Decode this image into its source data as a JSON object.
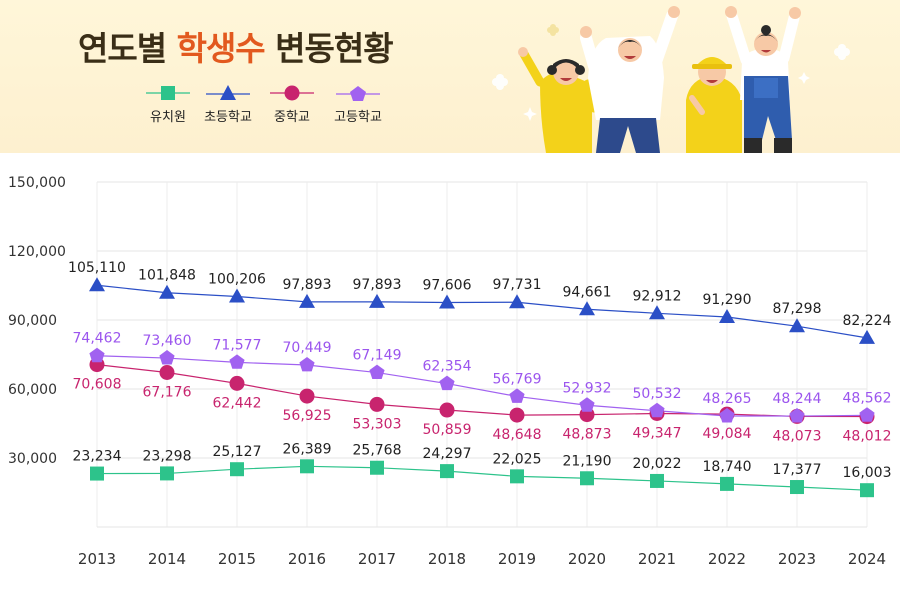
{
  "title": {
    "prefix": "연도별 ",
    "accent": "학생수",
    "suffix": " 변동현황"
  },
  "legend": [
    {
      "label": "유치원",
      "color": "#2dc38b",
      "marker": "square-icon"
    },
    {
      "label": "초등학교",
      "color": "#2b4fc6",
      "marker": "triangle-icon"
    },
    {
      "label": "중학교",
      "color": "#c8246e",
      "marker": "circle-icon"
    },
    {
      "label": "고등학교",
      "color": "#a162f0",
      "marker": "pentagon-icon"
    }
  ],
  "chart_data": {
    "type": "line",
    "x": [
      "2013",
      "2014",
      "2015",
      "2016",
      "2017",
      "2018",
      "2019",
      "2020",
      "2021",
      "2022",
      "2023",
      "2024"
    ],
    "ylim": [
      0,
      150000
    ],
    "yticks": [
      "30,000",
      "60,000",
      "90,000",
      "120,000",
      "150,000"
    ],
    "ytick_values": [
      30000,
      60000,
      90000,
      120000,
      150000
    ],
    "grid": true,
    "legend_position": "top",
    "series": [
      {
        "name": "유치원",
        "color": "#2dc38b",
        "label_color": "#222222",
        "marker": "square",
        "values": [
          23234,
          23298,
          25127,
          26389,
          25768,
          24297,
          22025,
          21190,
          20022,
          18740,
          17377,
          16003
        ],
        "labels": [
          "23,234",
          "23,298",
          "25,127",
          "26,389",
          "25,768",
          "24,297",
          "22,025",
          "21,190",
          "20,022",
          "18,740",
          "17,377",
          "16,003"
        ]
      },
      {
        "name": "초등학교",
        "color": "#2b4fc6",
        "label_color": "#222222",
        "marker": "triangle",
        "values": [
          105110,
          101848,
          100206,
          97893,
          97893,
          97606,
          97731,
          94661,
          92912,
          91290,
          87298,
          82224
        ],
        "labels": [
          "105,110",
          "101,848",
          "100,206",
          "97,893",
          "97,893",
          "97,606",
          "97,731",
          "94,661",
          "92,912",
          "91,290",
          "87,298",
          "82,224"
        ]
      },
      {
        "name": "중학교",
        "color": "#c8246e",
        "label_color": "#c8246e",
        "marker": "circle",
        "values": [
          70608,
          67176,
          62442,
          56925,
          53303,
          50859,
          48648,
          48873,
          49347,
          49084,
          48073,
          48012
        ],
        "labels": [
          "70,608",
          "67,176",
          "62,442",
          "56,925",
          "53,303",
          "50,859",
          "48,648",
          "48,873",
          "49,347",
          "49,084",
          "48,073",
          "48,012"
        ]
      },
      {
        "name": "고등학교",
        "color": "#a162f0",
        "label_color": "#9b55ee",
        "marker": "pentagon",
        "values": [
          74462,
          73460,
          71577,
          70449,
          67149,
          62354,
          56769,
          52932,
          50532,
          48265,
          48244,
          48562
        ],
        "labels": [
          "74,462",
          "73,460",
          "71,577",
          "70,449",
          "67,149",
          "62,354",
          "56,769",
          "52,932",
          "50,532",
          "48,265",
          "48,244",
          "48,562"
        ]
      }
    ]
  }
}
